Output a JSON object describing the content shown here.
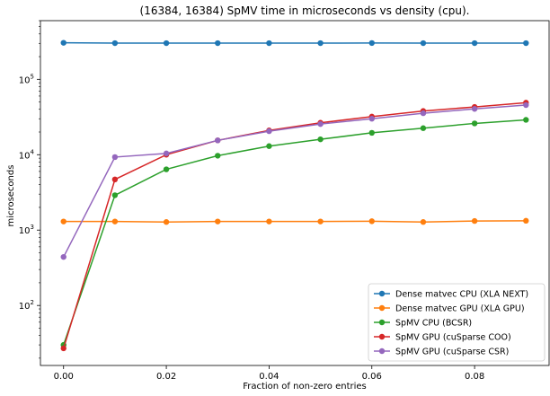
{
  "chart_data": {
    "type": "line",
    "title": "(16384, 16384) SpMV time in microseconds vs density (cpu).",
    "xlabel": "Fraction of non-zero entries",
    "ylabel": "microseconds",
    "xlim": [
      -0.0045,
      0.0945
    ],
    "ylim": [
      16,
      600000
    ],
    "yscale": "log",
    "x_ticks": [
      0.0,
      0.02,
      0.04,
      0.06,
      0.08
    ],
    "x_tick_labels": [
      "0.00",
      "0.02",
      "0.04",
      "0.06",
      "0.08"
    ],
    "y_ticks": [
      100,
      1000,
      10000,
      100000
    ],
    "y_tick_labels": [
      {
        "base": "10",
        "exp": "2"
      },
      {
        "base": "10",
        "exp": "3"
      },
      {
        "base": "10",
        "exp": "4"
      },
      {
        "base": "10",
        "exp": "5"
      }
    ],
    "grid": false,
    "legend_position": "lower-right",
    "x": [
      0.0,
      0.01,
      0.02,
      0.03,
      0.04,
      0.05,
      0.06,
      0.07,
      0.08,
      0.09
    ],
    "series": [
      {
        "name": "Dense matvec CPU (XLA NEXT)",
        "color": "#1f77b4",
        "values": [
          305000,
          302000,
          302000,
          302000,
          302000,
          302000,
          303000,
          302000,
          302000,
          302000
        ]
      },
      {
        "name": "Dense matvec GPU (XLA GPU)",
        "color": "#ff7f0e",
        "values": [
          1300,
          1300,
          1280,
          1300,
          1300,
          1300,
          1310,
          1280,
          1320,
          1330
        ]
      },
      {
        "name": "SpMV CPU (BCSR)",
        "color": "#2ca02c",
        "values": [
          30,
          2900,
          6400,
          9700,
          13000,
          16000,
          19500,
          22500,
          26000,
          29000
        ]
      },
      {
        "name": "SpMV GPU (cuSparse COO)",
        "color": "#d62728",
        "values": [
          27,
          4700,
          10000,
          15500,
          21000,
          26500,
          32000,
          38000,
          43000,
          49000
        ]
      },
      {
        "name": "SpMV GPU (cuSparse CSR)",
        "color": "#9467bd",
        "values": [
          440,
          9300,
          10400,
          15500,
          20500,
          25500,
          30000,
          35500,
          40500,
          45500
        ]
      }
    ]
  }
}
